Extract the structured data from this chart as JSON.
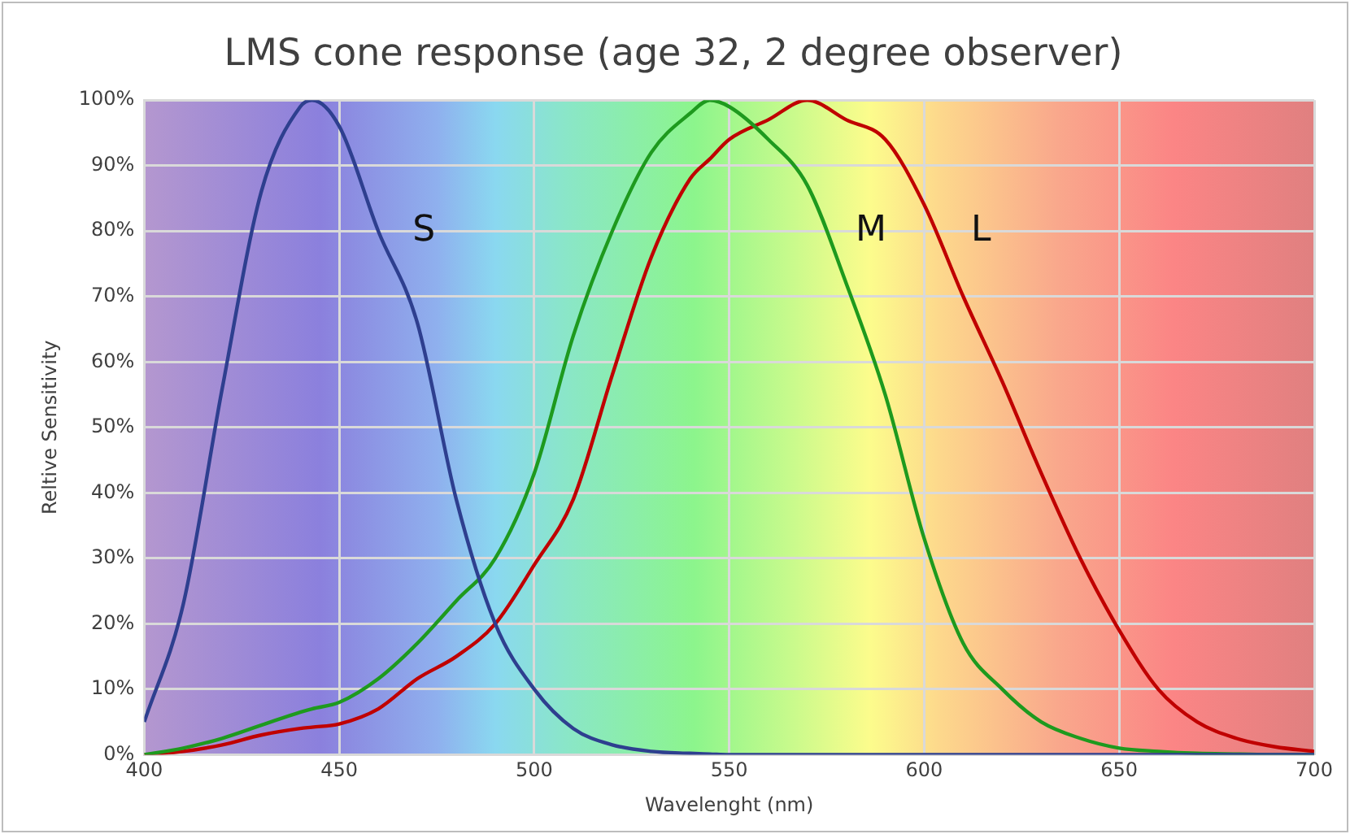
{
  "chart_data": {
    "type": "line",
    "title": "LMS cone response (age 32, 2 degree observer)",
    "xlabel": "Wavelenght (nm)",
    "ylabel": "Reltive Sensitivity",
    "x": [
      400,
      410,
      420,
      430,
      440,
      443,
      450,
      460,
      470,
      480,
      490,
      500,
      510,
      520,
      530,
      540,
      545,
      550,
      560,
      570,
      580,
      590,
      600,
      610,
      620,
      630,
      640,
      650,
      660,
      670,
      680,
      690,
      700
    ],
    "series": [
      {
        "name": "S",
        "color": "#2e3f8f",
        "values": [
          5,
          23,
          56,
          86,
          99,
          100,
          96,
          80,
          66,
          39,
          20,
          10,
          4,
          1.5,
          0.5,
          0.2,
          0.1,
          0,
          0,
          0,
          0,
          0,
          0,
          0,
          0,
          0,
          0,
          0,
          0,
          0,
          0,
          0,
          0
        ]
      },
      {
        "name": "M",
        "color": "#1e9a1e",
        "values": [
          0,
          1,
          2.5,
          4.5,
          6.5,
          7,
          8,
          11.6,
          17,
          23.5,
          30,
          43,
          64,
          80,
          92,
          98,
          100,
          99,
          94,
          87,
          72,
          55,
          33,
          17,
          10,
          5,
          2.5,
          1,
          0.5,
          0.2,
          0.1,
          0,
          0
        ]
      },
      {
        "name": "L",
        "color": "#c00000",
        "values": [
          0,
          0.5,
          1.5,
          3,
          4,
          4.2,
          4.7,
          7,
          11.6,
          15,
          20,
          29,
          39,
          58,
          76,
          88,
          91,
          94,
          97,
          100,
          97,
          94,
          84,
          70,
          57,
          43,
          30,
          19,
          10,
          5,
          2.5,
          1.2,
          0.5
        ]
      }
    ],
    "xlim": [
      400,
      700
    ],
    "xticks": [
      400,
      450,
      500,
      550,
      600,
      650,
      700
    ],
    "ylim": [
      0,
      100
    ],
    "yticks": [
      {
        "value": 0,
        "label": "0%"
      },
      {
        "value": 10,
        "label": "10%"
      },
      {
        "value": 20,
        "label": "20%"
      },
      {
        "value": 30,
        "label": "30%"
      },
      {
        "value": 40,
        "label": "40%"
      },
      {
        "value": 50,
        "label": "50%"
      },
      {
        "value": 60,
        "label": "60%"
      },
      {
        "value": 70,
        "label": "70%"
      },
      {
        "value": 80,
        "label": "80%"
      },
      {
        "value": 90,
        "label": "90%"
      },
      {
        "value": 100,
        "label": "100%"
      }
    ],
    "grid": true,
    "legend": false,
    "marker": "none",
    "line_style": "solid"
  }
}
